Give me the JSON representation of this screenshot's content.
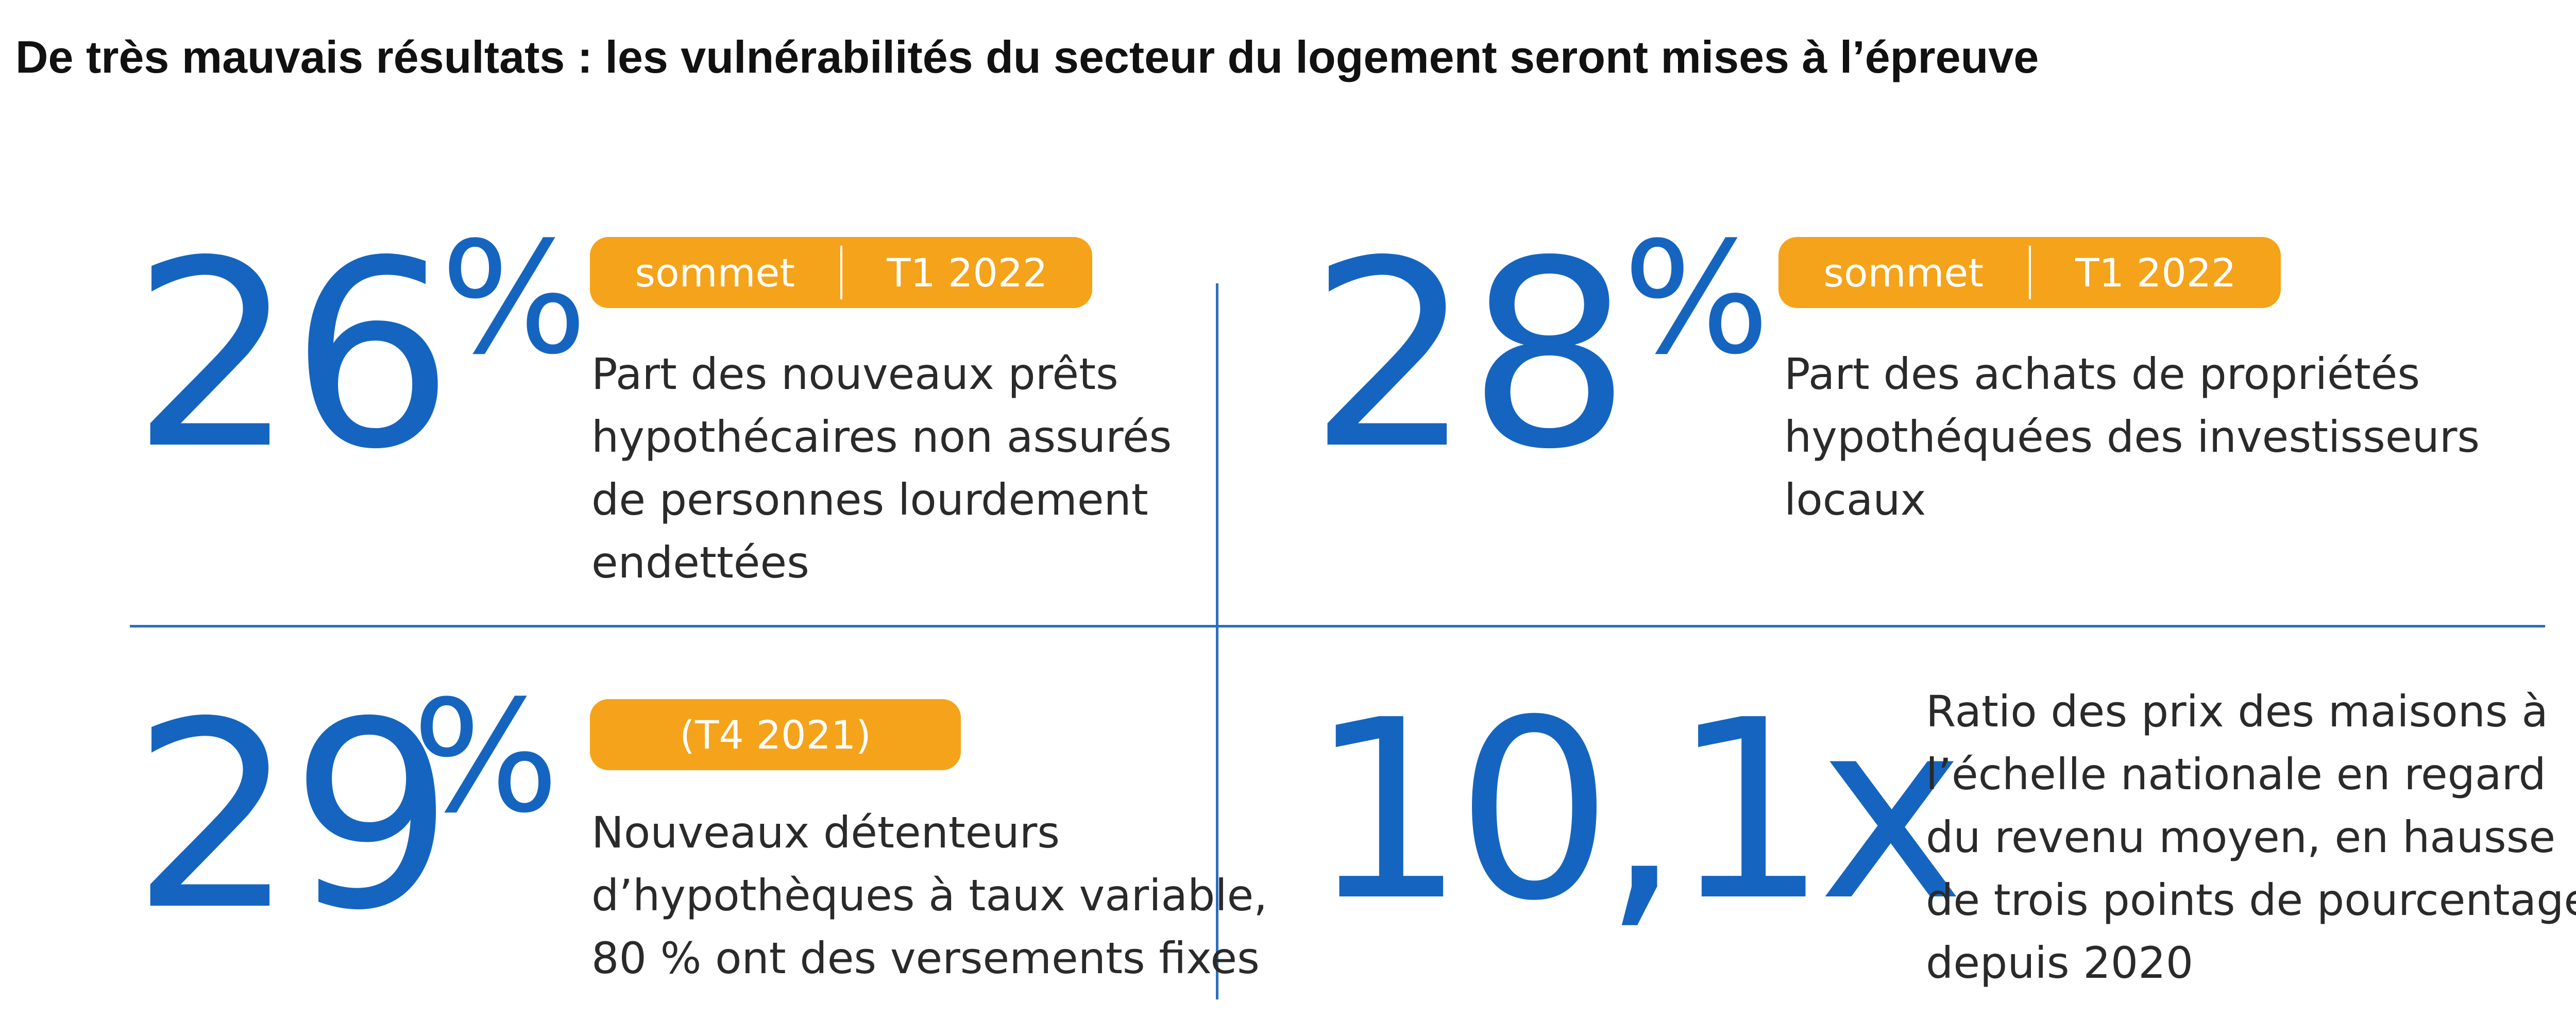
{
  "title": "De très mauvais résultats : les vulnérabilités du secteur du logement seront mises à l’épreuve",
  "colors": {
    "accent_blue": "#1565c0",
    "pill_orange": "#f5a31a",
    "divider_blue": "#2a6fc0",
    "text": "#2a2a2a"
  },
  "stats": [
    {
      "value": "26",
      "unit": "%",
      "pill": [
        "sommet",
        "T1 2022"
      ],
      "description": [
        "Part des nouveaux prêts",
        "hypothécaires non assurés",
        "de personnes lourdement",
        "endettées"
      ]
    },
    {
      "value": "28",
      "unit": "%",
      "pill": [
        "sommet",
        "T1 2022"
      ],
      "description": [
        "Part des achats de propriétés",
        "hypothéquées des investisseurs",
        "locaux"
      ]
    },
    {
      "value": "29",
      "unit": "%",
      "pill": [
        "(T4 2021)"
      ],
      "description": [
        "Nouveaux détenteurs",
        "d’hypothèques à taux variable,",
        "80 % ont des versements fixes"
      ]
    },
    {
      "value": "10,1x",
      "unit": "",
      "pill": [],
      "description": [
        "Ratio des prix des maisons à",
        "l’échelle nationale en regard",
        "du revenu moyen, en hausse",
        "de trois points de pourcentage",
        "depuis 2020"
      ]
    }
  ]
}
